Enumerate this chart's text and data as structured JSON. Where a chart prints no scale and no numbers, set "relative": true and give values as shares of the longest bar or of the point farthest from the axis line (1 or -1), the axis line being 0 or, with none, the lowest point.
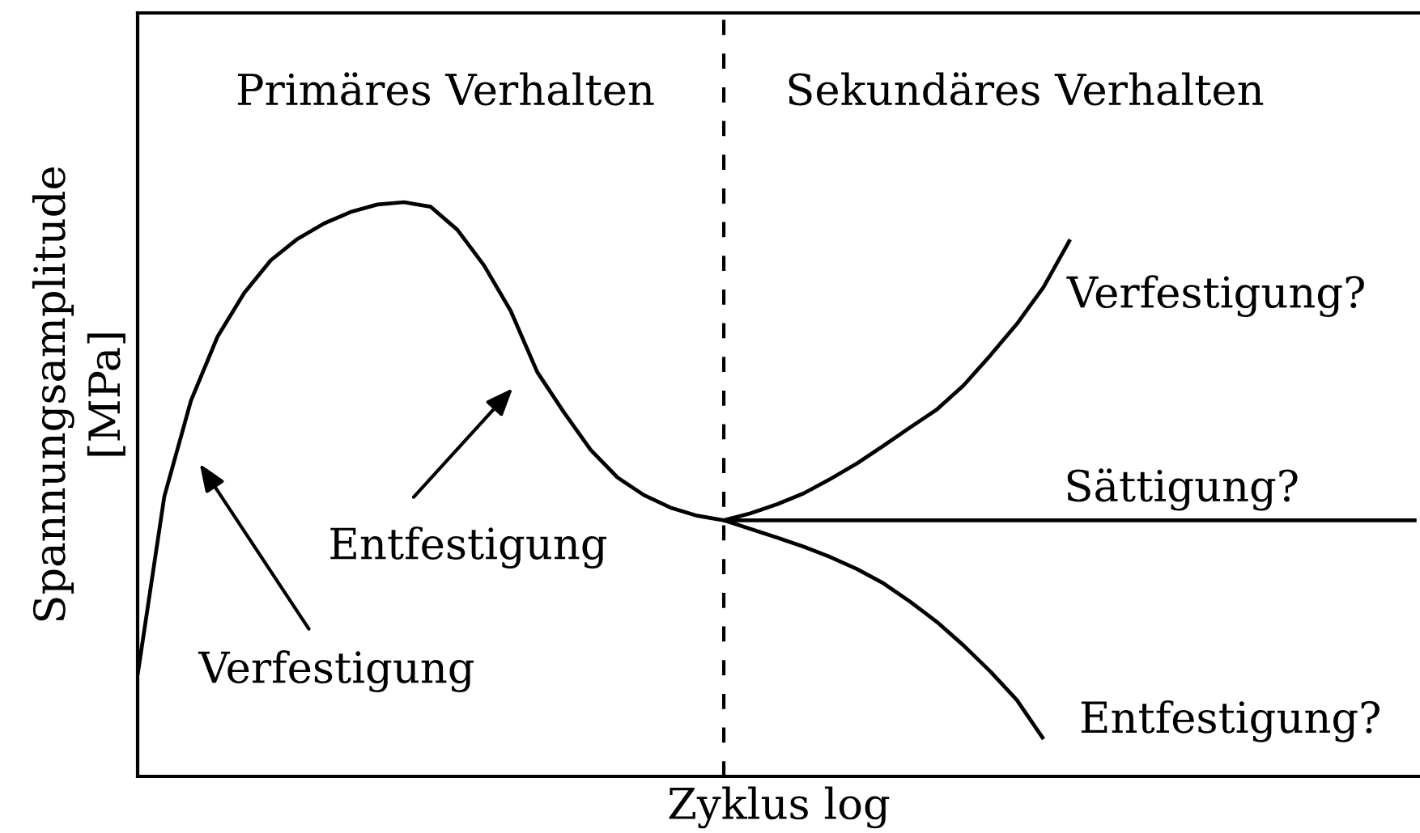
{
  "chart_data": {
    "type": "line",
    "relative": true,
    "xlabel": "Zyklus log",
    "ylabel": "Spannungsamplitude\n[MPa]",
    "categories": [
      null,
      null,
      null,
      null,
      null,
      null,
      null,
      null,
      null,
      null,
      null,
      null,
      null,
      null,
      null,
      null,
      null,
      null,
      null,
      null,
      null,
      null,
      null,
      null,
      null,
      null,
      null,
      null,
      null,
      null,
      null,
      null,
      null,
      null,
      null,
      null,
      null,
      null,
      null,
      null,
      null,
      null,
      null,
      null,
      null,
      null,
      null,
      null,
      null
    ],
    "annotations": [
      "Primäres Verhalten",
      "Sekundäres Verhalten",
      "Verfestigung",
      "Entfestigung"
    ],
    "series": [
      {
        "name": "Verfestigung?",
        "color": "#000000",
        "values": [
          null,
          null,
          null,
          null,
          null,
          null,
          null,
          null,
          null,
          null,
          null,
          null,
          null,
          null,
          null,
          null,
          null,
          null,
          null,
          null,
          null,
          null,
          0.446,
          0.458,
          0.474,
          0.493,
          0.518,
          0.545,
          0.576,
          0.608,
          0.639,
          0.681,
          0.733,
          0.788,
          0.852,
          0.935,
          null,
          null,
          null,
          null,
          null,
          null,
          null,
          null,
          null,
          null,
          null,
          null,
          null
        ]
      },
      {
        "name": "Sättigung?",
        "color": "#000000",
        "values": [
          0.177,
          0.487,
          0.654,
          0.766,
          0.842,
          0.899,
          0.936,
          0.963,
          0.983,
          0.996,
          1.0,
          0.992,
          0.952,
          0.89,
          0.811,
          0.704,
          0.634,
          0.569,
          0.521,
          0.49,
          0.468,
          0.454,
          0.446,
          0.446,
          0.446,
          0.446,
          0.446,
          0.446,
          0.446,
          0.446,
          0.446,
          0.446,
          0.446,
          0.446,
          0.446,
          0.446,
          0.446,
          0.446,
          0.446,
          0.446,
          0.446,
          0.446,
          0.446,
          0.446,
          0.446,
          0.446,
          0.446,
          0.446,
          0.446
        ]
      },
      {
        "name": "Entfestigung?",
        "color": "#000000",
        "values": [
          null,
          null,
          null,
          null,
          null,
          null,
          null,
          null,
          null,
          null,
          null,
          null,
          null,
          null,
          null,
          null,
          null,
          null,
          null,
          null,
          null,
          null,
          0.446,
          0.431,
          0.416,
          0.4,
          0.382,
          0.361,
          0.336,
          0.304,
          0.269,
          0.228,
          0.183,
          0.133,
          0.065,
          null,
          null,
          null,
          null,
          null,
          null,
          null,
          null,
          null,
          null,
          null,
          null,
          null,
          null
        ]
      }
    ]
  }
}
